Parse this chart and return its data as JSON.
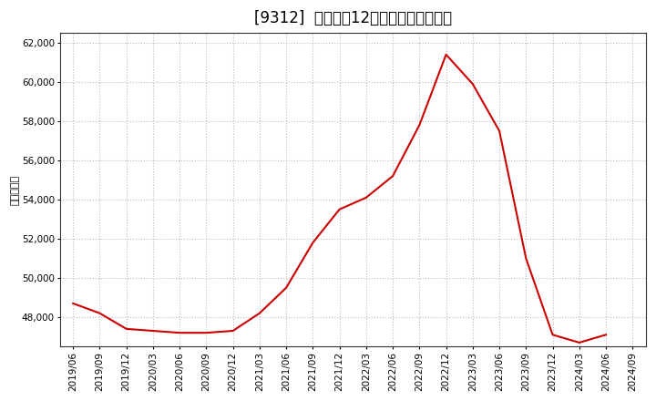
{
  "title": "[9312]  売上高の12か月移動合計の推移",
  "ylabel": "（百万円）",
  "line_color": "#cc0000",
  "background_color": "#ffffff",
  "plot_bg_color": "#ffffff",
  "grid_color": "#bbbbbb",
  "ylim": [
    46500,
    62500
  ],
  "yticks": [
    48000,
    50000,
    52000,
    54000,
    56000,
    58000,
    60000,
    62000
  ],
  "dates": [
    "2019/06",
    "2019/09",
    "2019/12",
    "2020/03",
    "2020/06",
    "2020/09",
    "2020/12",
    "2021/03",
    "2021/06",
    "2021/09",
    "2021/12",
    "2022/03",
    "2022/06",
    "2022/09",
    "2022/12",
    "2023/03",
    "2023/06",
    "2023/09",
    "2023/12",
    "2024/03",
    "2024/06",
    "2024/09"
  ],
  "values": [
    48700,
    48200,
    47400,
    47300,
    47200,
    47200,
    47300,
    48200,
    49500,
    51800,
    53500,
    54100,
    55200,
    57800,
    61400,
    59900,
    57500,
    51000,
    47100,
    46700,
    47100,
    null
  ],
  "title_fontsize": 12,
  "tick_fontsize": 7.5,
  "ylabel_fontsize": 8
}
